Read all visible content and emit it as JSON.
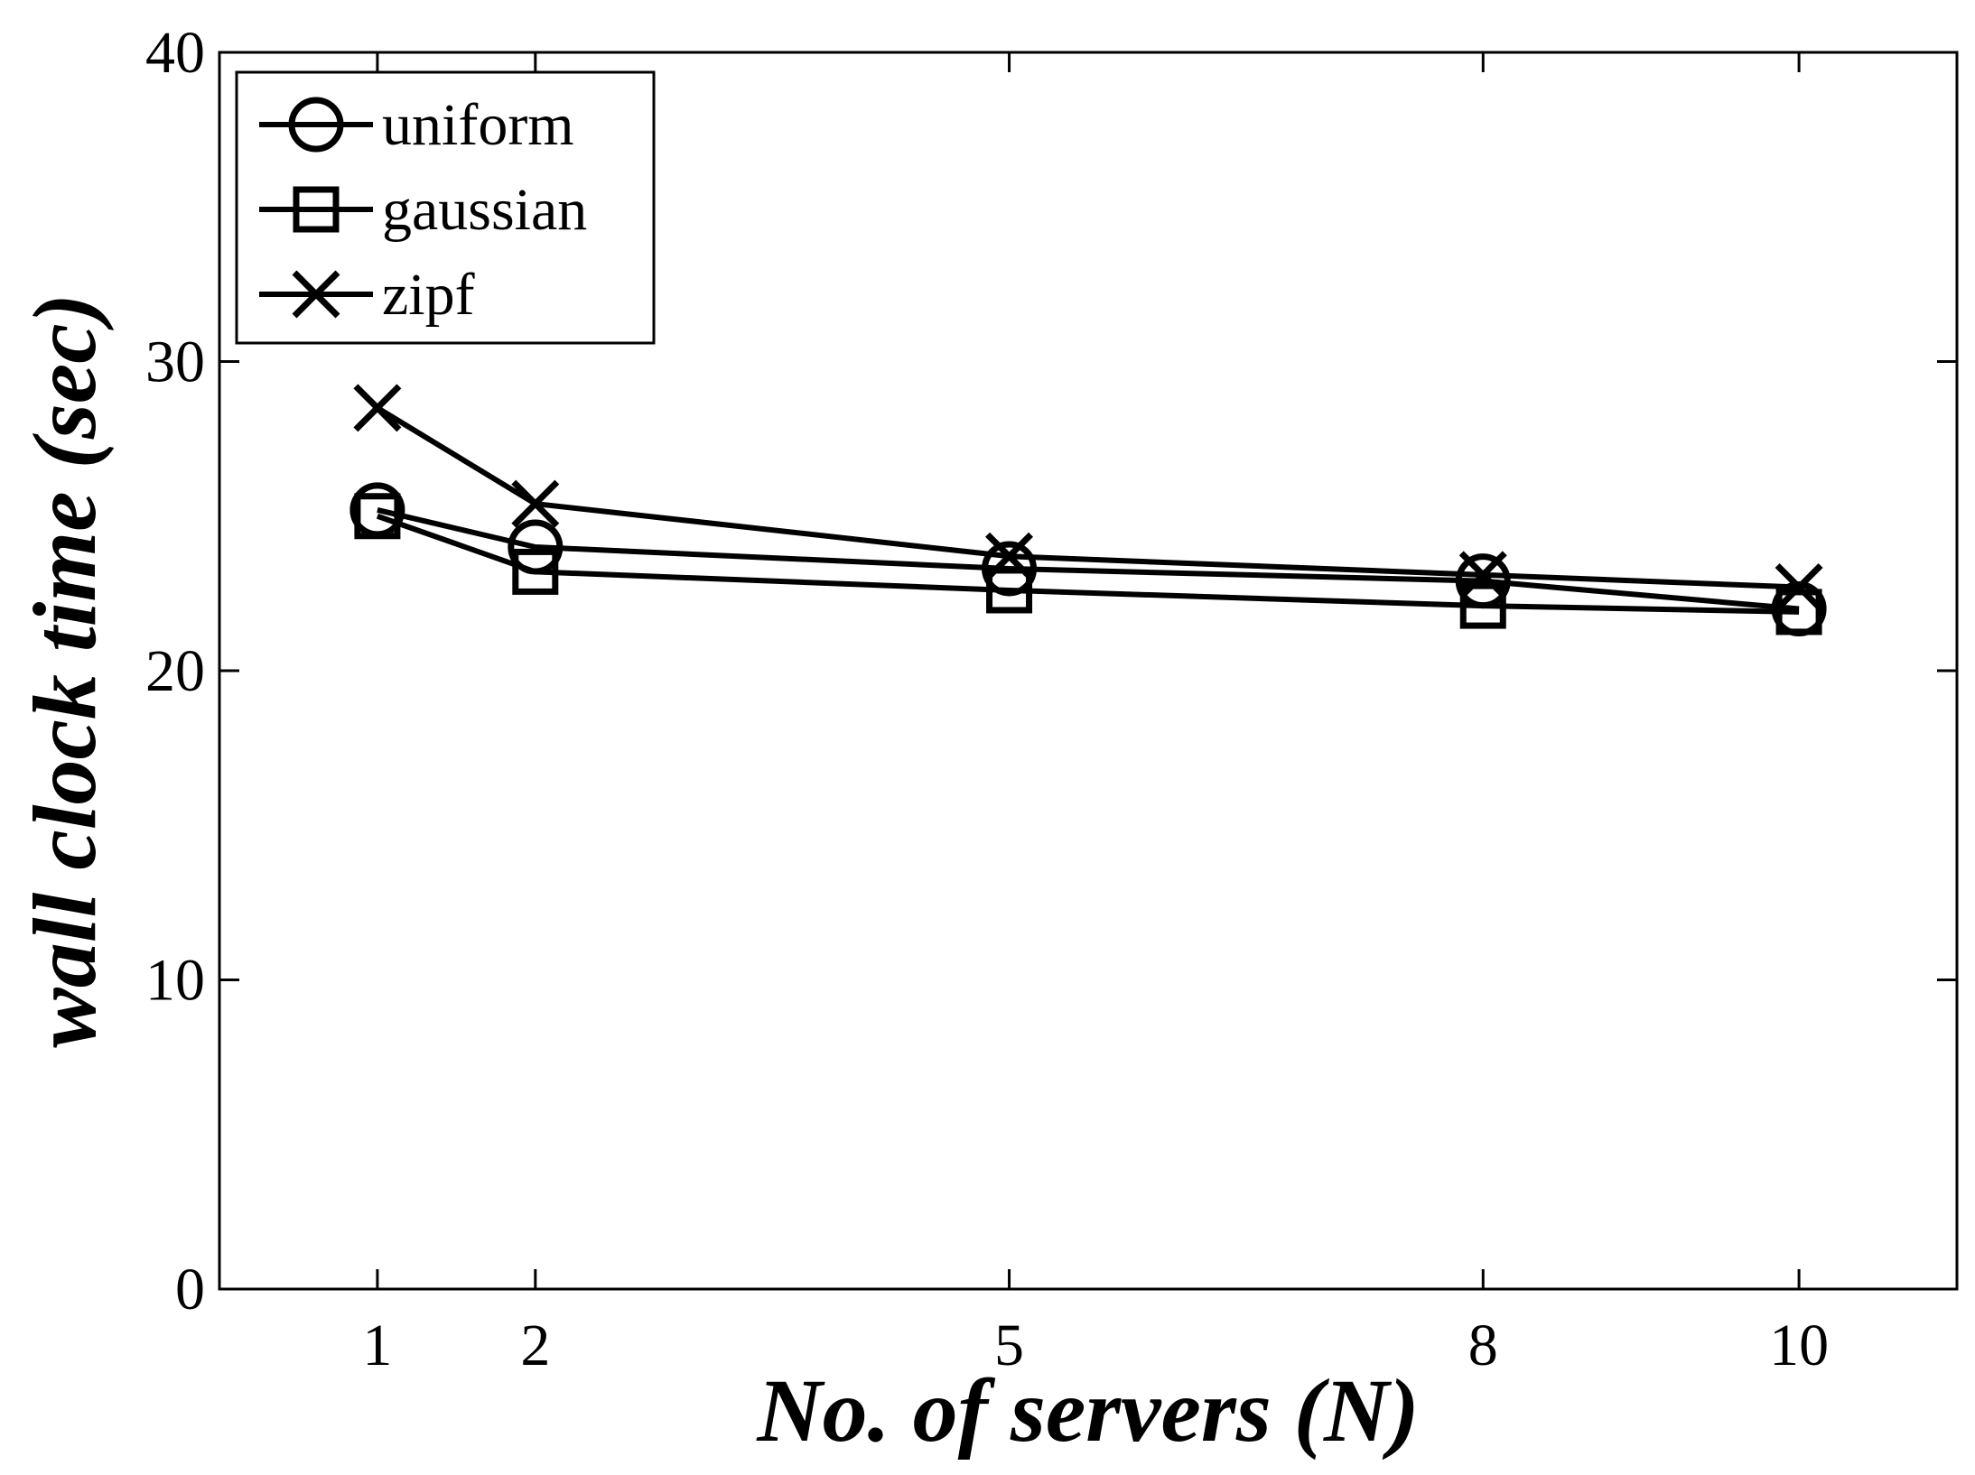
{
  "chart_data": {
    "type": "line",
    "xlabel": "No. of servers (N)",
    "ylabel": "wall clock time (sec)",
    "xlim": [
      0,
      11
    ],
    "ylim": [
      0,
      40
    ],
    "x_ticks": [
      1,
      2,
      5,
      8,
      10
    ],
    "y_ticks": [
      0,
      10,
      20,
      30,
      40
    ],
    "grid": false,
    "legend_position": "top-left",
    "x": [
      1,
      2,
      5,
      8,
      10
    ],
    "series": [
      {
        "name": "uniform",
        "marker": "circle",
        "values": [
          25.2,
          24.0,
          23.3,
          22.9,
          22.0
        ]
      },
      {
        "name": "gaussian",
        "marker": "square",
        "values": [
          25.0,
          23.2,
          22.6,
          22.1,
          21.9
        ]
      },
      {
        "name": "zipf",
        "marker": "x",
        "values": [
          28.5,
          25.4,
          23.7,
          23.1,
          22.7
        ]
      }
    ],
    "colors": {
      "line": "#000000",
      "background": "#ffffff"
    }
  }
}
